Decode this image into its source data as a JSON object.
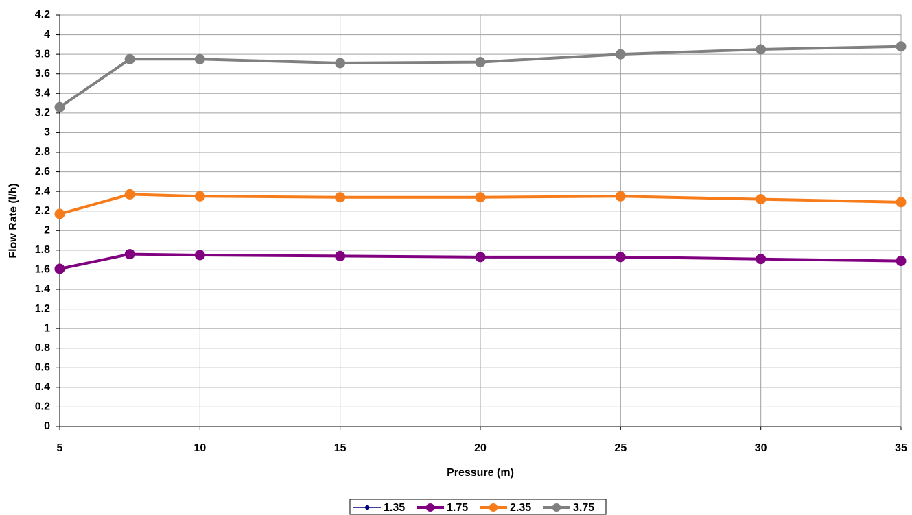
{
  "chart_data": {
    "type": "line",
    "xlabel": "Pressure (m)",
    "ylabel": "Flow Rate (l/h)",
    "x": [
      5,
      7.5,
      10,
      15,
      20,
      25,
      30,
      35
    ],
    "series": [
      {
        "name": "1.35",
        "color": "#000080",
        "marker": "diamond",
        "values": [
          null,
          null,
          null,
          null,
          null,
          null,
          null,
          null
        ]
      },
      {
        "name": "1.75",
        "color": "#800080",
        "marker": "circle",
        "values": [
          1.61,
          1.76,
          1.75,
          1.74,
          1.73,
          1.73,
          1.71,
          1.69
        ]
      },
      {
        "name": "2.35",
        "color": "#f67c1b",
        "marker": "circle",
        "values": [
          2.17,
          2.37,
          2.35,
          2.34,
          2.34,
          2.35,
          2.32,
          2.29
        ]
      },
      {
        "name": "3.75",
        "color": "#808080",
        "marker": "circle",
        "values": [
          3.26,
          3.75,
          3.75,
          3.71,
          3.72,
          3.8,
          3.85,
          3.88
        ]
      }
    ],
    "xlim": [
      5,
      35
    ],
    "xticks": [
      5,
      10,
      15,
      20,
      25,
      30,
      35
    ],
    "ylim": [
      0,
      4.2
    ],
    "yticks": [
      0,
      0.2,
      0.4,
      0.6,
      0.8,
      1,
      1.2,
      1.4,
      1.6,
      1.8,
      2,
      2.2,
      2.4,
      2.6,
      2.8,
      3,
      3.2,
      3.4,
      3.6,
      3.8,
      4,
      4.2
    ],
    "grid": true,
    "legend": "bottom"
  }
}
